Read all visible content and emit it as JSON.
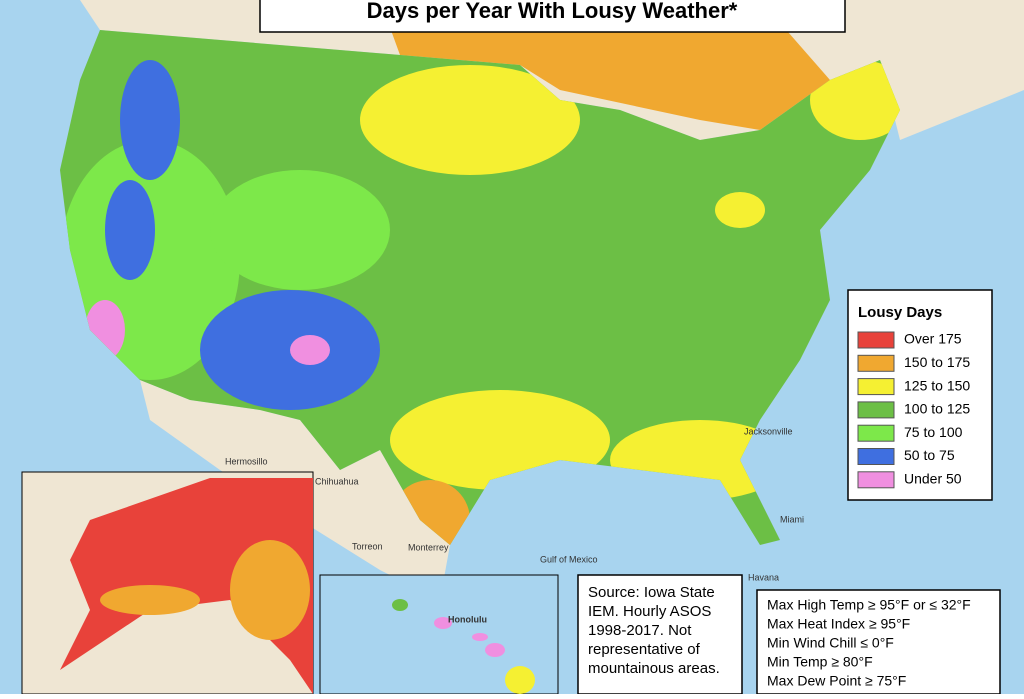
{
  "title": "Days per Year With Lousy Weather*",
  "legend": {
    "title": "Lousy Days",
    "items": [
      {
        "label": "Over 175",
        "color": "#e8423a"
      },
      {
        "label": "150 to 175",
        "color": "#f0a830"
      },
      {
        "label": "125 to 150",
        "color": "#f5f032"
      },
      {
        "label": "100 to 125",
        "color": "#6cbf45"
      },
      {
        "label": "75 to 100",
        "color": "#7de84a"
      },
      {
        "label": "50 to 75",
        "color": "#3f6fe0"
      },
      {
        "label": "Under 50",
        "color": "#f08fe0"
      }
    ]
  },
  "source": [
    "Source: Iowa State",
    "IEM. Hourly ASOS",
    "1998-2017. Not",
    "representative of",
    "mountainous areas."
  ],
  "criteria": [
    "Max High Temp ≥ 95°F or ≤ 32°F",
    "Max Heat Index ≥ 95°F",
    "Min Wind Chill ≤ 0°F",
    "Min Temp ≥ 80°F",
    "Max Dew Point ≥ 75°F"
  ],
  "places": {
    "honolulu": "Honolulu",
    "hermosillo": "Hermosillo",
    "chihuahua": "Chihuahua",
    "torreon": "Torreon",
    "monterrey": "Monterrey",
    "havana": "Havana",
    "gulf": "Gulf of Mexico",
    "jacksonville": "Jacksonville",
    "miami": "Miami"
  }
}
